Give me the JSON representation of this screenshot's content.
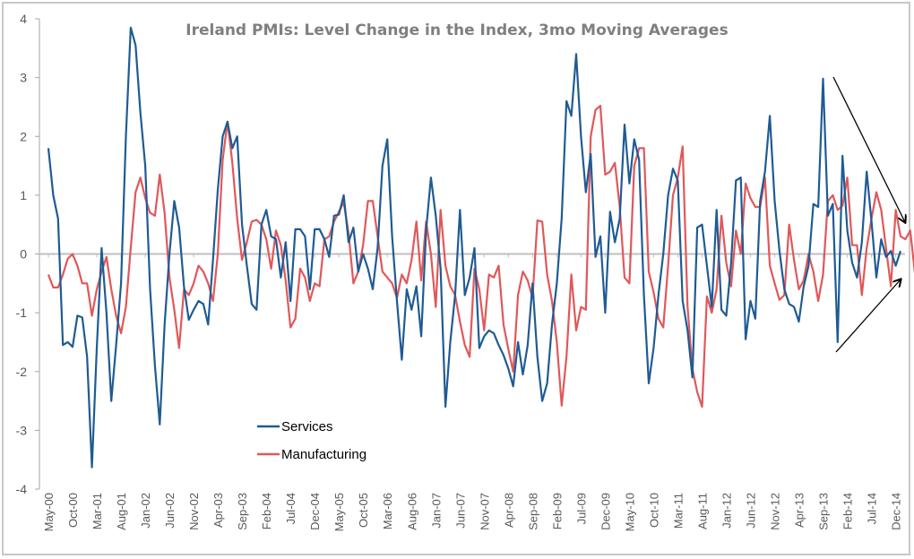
{
  "chart_data": {
    "type": "line",
    "title": "Ireland PMIs: Level Change in the Index, 3mo Moving Averages",
    "xlabel": "",
    "ylabel": "",
    "ylim": [
      -4,
      4
    ],
    "yticks": [
      4,
      3,
      2,
      1,
      0,
      -1,
      -2,
      -3,
      -4
    ],
    "grid": false,
    "legend_position": "bottom-center-left",
    "start_month": "May-00",
    "end_month": "Dec-14",
    "x_tick_labels": [
      "May-00",
      "Oct-00",
      "Mar-01",
      "Aug-01",
      "Jan-02",
      "Jun-02",
      "Nov-02",
      "Apr-03",
      "Sep-03",
      "Feb-04",
      "Jul-04",
      "Dec-04",
      "May-05",
      "Oct-05",
      "Mar-06",
      "Aug-06",
      "Jan-07",
      "Jun-07",
      "Nov-07",
      "Apr-08",
      "Sep-08",
      "Feb-09",
      "Jul-09",
      "Dec-09",
      "May-10",
      "Oct-10",
      "Mar-11",
      "Aug-11",
      "Jan-12",
      "Jun-12",
      "Nov-12",
      "Apr-13",
      "Sep-13",
      "Feb-14",
      "Jul-14",
      "Dec-14"
    ],
    "x_tick_every_months": 5,
    "series": [
      {
        "name": "Services",
        "color": "#1f5b94",
        "values": [
          1.8,
          1.0,
          0.6,
          -1.55,
          -1.5,
          -1.58,
          -1.05,
          -1.08,
          -1.75,
          -3.63,
          -1.6,
          0.1,
          -1.0,
          -2.5,
          -1.55,
          -0.5,
          2.0,
          3.85,
          3.55,
          2.4,
          1.5,
          -0.6,
          -1.9,
          -2.9,
          -1.2,
          0.0,
          0.9,
          0.45,
          -0.55,
          -1.12,
          -0.95,
          -0.8,
          -0.85,
          -1.2,
          -0.1,
          1.1,
          2.0,
          2.25,
          1.8,
          2.0,
          0.5,
          -0.2,
          -0.85,
          -0.95,
          0.5,
          0.75,
          0.3,
          0.25,
          -0.4,
          0.2,
          -0.8,
          0.42,
          0.42,
          0.3,
          -0.6,
          0.42,
          0.42,
          0.25,
          -0.05,
          0.65,
          0.67,
          1.0,
          0.2,
          0.45,
          -0.3,
          0.0,
          -0.25,
          -0.6,
          0.1,
          1.5,
          1.95,
          0.3,
          -0.8,
          -1.8,
          -0.6,
          -0.95,
          -0.55,
          -1.4,
          0.4,
          1.3,
          0.65,
          -0.25,
          -2.6,
          -1.5,
          -0.7,
          0.75,
          -0.7,
          -0.4,
          0.1,
          -1.6,
          -1.4,
          -1.3,
          -1.35,
          -1.55,
          -1.72,
          -1.95,
          -2.25,
          -1.5,
          -2.05,
          -1.55,
          -0.5,
          -1.75,
          -2.5,
          -2.2,
          -1.2,
          -0.5,
          0.6,
          2.6,
          2.35,
          3.4,
          2.0,
          1.05,
          1.7,
          -0.05,
          0.3,
          -1.0,
          0.72,
          0.2,
          0.6,
          2.2,
          1.2,
          1.95,
          1.6,
          -0.7,
          -2.2,
          -1.6,
          -0.7,
          0.0,
          1.0,
          1.45,
          1.25,
          -0.8,
          -1.3,
          -2.1,
          0.45,
          0.5,
          -0.2,
          -0.9,
          0.75,
          -0.95,
          -1.05,
          -0.15,
          1.25,
          1.3,
          -1.45,
          -0.8,
          -1.1,
          0.9,
          1.4,
          2.35,
          0.9,
          0.05,
          -0.6,
          -0.85,
          -0.9,
          -1.15,
          -0.55,
          -0.2,
          0.85,
          0.8,
          2.98,
          0.65,
          0.85,
          -1.5,
          1.67,
          0.4,
          -0.15,
          -0.4,
          0.2,
          1.4,
          0.55,
          -0.4,
          0.25,
          -0.05,
          0.05,
          -0.2,
          0.05
        ]
      },
      {
        "name": "Manufacturing",
        "color": "#e0585a",
        "values": [
          -0.35,
          -0.57,
          -0.57,
          -0.35,
          -0.08,
          0.0,
          -0.2,
          -0.5,
          -0.5,
          -1.05,
          -0.6,
          -0.3,
          -0.05,
          -0.6,
          -1.05,
          -1.35,
          -0.9,
          0.1,
          1.05,
          1.3,
          0.95,
          0.7,
          0.65,
          1.35,
          0.7,
          -0.4,
          -0.95,
          -1.6,
          -0.6,
          -0.7,
          -0.5,
          -0.2,
          -0.3,
          -0.5,
          -0.8,
          0.0,
          1.6,
          2.25,
          1.55,
          0.6,
          -0.1,
          0.2,
          0.55,
          0.58,
          0.5,
          0.25,
          -0.25,
          0.4,
          0.15,
          -0.45,
          -1.25,
          -1.1,
          -0.25,
          -0.4,
          -0.8,
          -0.5,
          -0.55,
          0.25,
          0.3,
          0.55,
          0.72,
          0.88,
          0.35,
          -0.5,
          -0.3,
          0.15,
          0.9,
          0.9,
          0.3,
          -0.3,
          -0.4,
          -0.5,
          -0.75,
          -0.35,
          -0.5,
          -0.1,
          0.55,
          -0.45,
          0.55,
          0.0,
          -0.9,
          0.75,
          -0.2,
          -0.55,
          -0.7,
          -1.15,
          -1.55,
          -1.75,
          -0.25,
          -0.6,
          -1.3,
          -0.35,
          -0.4,
          -0.2,
          -1.2,
          -1.62,
          -2.0,
          -0.7,
          -0.3,
          -0.45,
          -0.75,
          0.57,
          0.55,
          -0.35,
          -0.8,
          -1.5,
          -2.58,
          -1.75,
          -0.35,
          -1.3,
          -0.9,
          -0.95,
          2.0,
          2.45,
          2.52,
          1.35,
          1.4,
          1.55,
          0.8,
          -0.4,
          -0.5,
          1.5,
          1.8,
          1.8,
          -0.3,
          -0.65,
          -1.1,
          -1.25,
          -0.2,
          1.0,
          1.3,
          1.83,
          -0.9,
          -1.95,
          -2.35,
          -2.6,
          -0.72,
          -1.0,
          -0.6,
          0.65,
          -0.15,
          -0.55,
          0.4,
          0.0,
          1.2,
          0.95,
          0.8,
          0.8,
          1.3,
          -0.2,
          -0.5,
          -0.78,
          -0.7,
          0.5,
          -0.1,
          -0.6,
          -0.45,
          0.0,
          -0.3,
          -0.8,
          -0.35,
          0.9,
          1.0,
          0.75,
          0.82,
          1.3,
          0.15,
          0.15,
          -0.7,
          0.1,
          0.6,
          1.05,
          0.75,
          0.1,
          -0.55,
          0.75,
          0.3,
          0.25,
          0.4,
          -0.35,
          0.4
        ]
      }
    ],
    "annotations": [
      {
        "type": "arrow",
        "description": "downward-pointing arrow converging toward the zero line at the end of the series"
      },
      {
        "type": "arrow",
        "description": "upward-pointing arrow converging toward the zero line at the end of the series"
      }
    ]
  }
}
